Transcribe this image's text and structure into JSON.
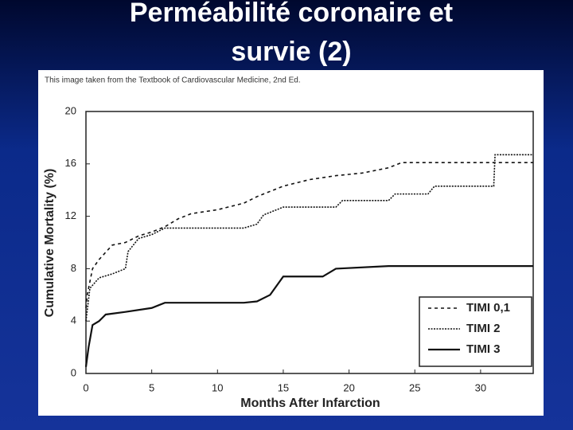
{
  "chart_data": {
    "type": "line",
    "title_lines": [
      "Perméabilité coronaire et",
      "survie (2)"
    ],
    "source_note": "This image taken from the Textbook of Cardiovascular Medicine, 2nd Ed.",
    "xlabel": "Months After Infarction",
    "ylabel": "Cumulative Mortality (%)",
    "xlim": [
      0,
      34
    ],
    "xticks": [
      0,
      5,
      10,
      15,
      20,
      25,
      30
    ],
    "ylim": [
      0,
      20
    ],
    "yticks": [
      0,
      4,
      8,
      12,
      16,
      20
    ],
    "legend": "lower right",
    "series": [
      {
        "name": "TIMI 0,1",
        "color": "#111111",
        "line_style": "dashed",
        "x": [
          0,
          0.1,
          0.5,
          1,
          2,
          3,
          4,
          5,
          6,
          7,
          8,
          10,
          12,
          13,
          15,
          17,
          19,
          21,
          23,
          24,
          34
        ],
        "values": [
          5,
          6,
          8,
          8.7,
          9.8,
          10,
          10.5,
          10.8,
          11.2,
          11.8,
          12.2,
          12.5,
          13,
          13.5,
          14.3,
          14.8,
          15.1,
          15.3,
          15.7,
          16.1,
          16.1
        ]
      },
      {
        "name": "TIMI 2",
        "color": "#111111",
        "line_style": "dotted",
        "x": [
          0,
          0.3,
          1,
          2,
          3,
          3.2,
          4,
          5,
          6,
          12,
          13,
          13.5,
          15,
          19,
          19.5,
          23,
          23.5,
          26,
          26.5,
          31,
          31.1,
          34
        ],
        "values": [
          4,
          6.5,
          7.3,
          7.6,
          8,
          9.3,
          10.3,
          10.6,
          11.1,
          11.1,
          11.4,
          12.1,
          12.7,
          12.7,
          13.2,
          13.2,
          13.7,
          13.7,
          14.3,
          14.3,
          16.7,
          16.7
        ]
      },
      {
        "name": "TIMI 3",
        "color": "#111111",
        "line_style": "solid",
        "x": [
          0,
          0.2,
          0.5,
          1,
          1.5,
          3,
          5,
          6,
          12,
          13,
          14,
          15,
          18,
          19,
          23,
          34
        ],
        "values": [
          0.5,
          2,
          3.7,
          4,
          4.5,
          4.7,
          5,
          5.4,
          5.4,
          5.5,
          6,
          7.4,
          7.4,
          8,
          8.2,
          8.2
        ]
      }
    ]
  }
}
